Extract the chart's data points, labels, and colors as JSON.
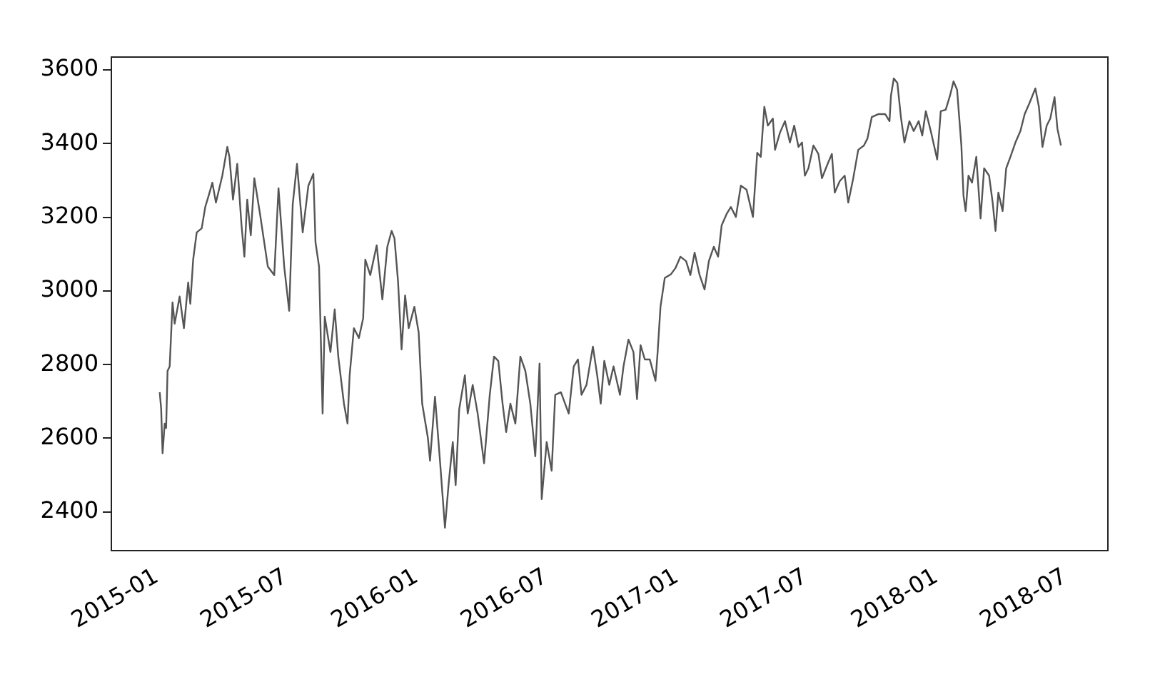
{
  "chart_data": {
    "type": "line",
    "xlim": [
      "2014-10-29",
      "2018-08-30"
    ],
    "xticks": [
      "2015-01",
      "2015-07",
      "2016-01",
      "2016-07",
      "2017-01",
      "2017-07",
      "2018-01",
      "2018-07"
    ],
    "ylim": [
      2295,
      3635
    ],
    "yticks": [
      2400,
      2600,
      2800,
      3000,
      3200,
      3400,
      3600
    ],
    "grid": false,
    "legend": false,
    "marker": "none",
    "series": [
      {
        "color": "#555555",
        "x": [
          "2015-01-05",
          "2015-01-07",
          "2015-01-09",
          "2015-01-12",
          "2015-01-14",
          "2015-01-16",
          "2015-01-19",
          "2015-01-23",
          "2015-01-26",
          "2015-02-02",
          "2015-02-08",
          "2015-02-14",
          "2015-02-17",
          "2015-02-21",
          "2015-02-26",
          "2015-03-05",
          "2015-03-10",
          "2015-03-15",
          "2015-03-20",
          "2015-03-25",
          "2015-04-03",
          "2015-04-10",
          "2015-04-13",
          "2015-04-18",
          "2015-04-24",
          "2015-04-30",
          "2015-05-04",
          "2015-05-08",
          "2015-05-13",
          "2015-05-18",
          "2015-05-26",
          "2015-06-06",
          "2015-06-15",
          "2015-06-21",
          "2015-06-29",
          "2015-07-06",
          "2015-07-11",
          "2015-07-17",
          "2015-07-25",
          "2015-08-02",
          "2015-08-09",
          "2015-08-12",
          "2015-08-17",
          "2015-08-22",
          "2015-08-25",
          "2015-09-02",
          "2015-09-08",
          "2015-09-13",
          "2015-09-21",
          "2015-09-26",
          "2015-09-29",
          "2015-10-05",
          "2015-10-12",
          "2015-10-18",
          "2015-10-21",
          "2015-10-28",
          "2015-11-06",
          "2015-11-14",
          "2015-11-21",
          "2015-11-27",
          "2015-12-01",
          "2015-12-06",
          "2015-12-11",
          "2015-12-16",
          "2015-12-21",
          "2015-12-29",
          "2016-01-04",
          "2016-01-09",
          "2016-01-17",
          "2016-01-20",
          "2016-01-27",
          "2016-02-03",
          "2016-02-10",
          "2016-02-15",
          "2016-02-21",
          "2016-02-25",
          "2016-03-01",
          "2016-03-09",
          "2016-03-13",
          "2016-03-20",
          "2016-03-27",
          "2016-04-05",
          "2016-04-13",
          "2016-04-19",
          "2016-04-25",
          "2016-05-01",
          "2016-05-06",
          "2016-05-12",
          "2016-05-19",
          "2016-05-26",
          "2016-06-02",
          "2016-06-09",
          "2016-06-16",
          "2016-06-22",
          "2016-06-25",
          "2016-07-02",
          "2016-07-09",
          "2016-07-14",
          "2016-07-22",
          "2016-08-02",
          "2016-08-09",
          "2016-08-15",
          "2016-08-20",
          "2016-08-27",
          "2016-09-05",
          "2016-09-11",
          "2016-09-16",
          "2016-09-21",
          "2016-09-28",
          "2016-10-04",
          "2016-10-13",
          "2016-10-18",
          "2016-10-25",
          "2016-11-01",
          "2016-11-06",
          "2016-11-11",
          "2016-11-17",
          "2016-11-24",
          "2016-12-02",
          "2016-12-05",
          "2016-12-09",
          "2016-12-15",
          "2016-12-24",
          "2016-12-30",
          "2017-01-06",
          "2017-01-14",
          "2017-01-20",
          "2017-01-26",
          "2017-02-02",
          "2017-02-09",
          "2017-02-15",
          "2017-02-22",
          "2017-02-28",
          "2017-03-05",
          "2017-03-12",
          "2017-03-18",
          "2017-03-25",
          "2017-04-01",
          "2017-04-09",
          "2017-04-18",
          "2017-04-24",
          "2017-04-29",
          "2017-05-04",
          "2017-05-09",
          "2017-05-16",
          "2017-05-19",
          "2017-05-26",
          "2017-06-02",
          "2017-06-09",
          "2017-06-15",
          "2017-06-21",
          "2017-06-26",
          "2017-06-30",
          "2017-07-05",
          "2017-07-12",
          "2017-07-19",
          "2017-07-24",
          "2017-08-01",
          "2017-08-07",
          "2017-08-11",
          "2017-08-18",
          "2017-08-25",
          "2017-08-30",
          "2017-09-06",
          "2017-09-13",
          "2017-09-21",
          "2017-09-26",
          "2017-10-02",
          "2017-10-11",
          "2017-10-21",
          "2017-10-27",
          "2017-10-29",
          "2017-11-02",
          "2017-11-07",
          "2017-11-12",
          "2017-11-17",
          "2017-11-24",
          "2017-11-30",
          "2017-12-07",
          "2017-12-12",
          "2017-12-17",
          "2017-12-24",
          "2018-01-02",
          "2018-01-07",
          "2018-01-14",
          "2018-01-20",
          "2018-01-25",
          "2018-01-30",
          "2018-02-05",
          "2018-02-08",
          "2018-02-11",
          "2018-02-15",
          "2018-02-20",
          "2018-02-26",
          "2018-03-04",
          "2018-03-09",
          "2018-03-16",
          "2018-03-21",
          "2018-03-25",
          "2018-03-29",
          "2018-04-04",
          "2018-04-09",
          "2018-04-15",
          "2018-04-22",
          "2018-04-29",
          "2018-05-05",
          "2018-05-12",
          "2018-05-20",
          "2018-05-25",
          "2018-05-30",
          "2018-06-05",
          "2018-06-10",
          "2018-06-16",
          "2018-06-20",
          "2018-06-25"
        ],
        "values": [
          2725,
          2680,
          2559,
          2640,
          2628,
          2783,
          2795,
          2969,
          2911,
          2985,
          2899,
          3023,
          2965,
          3085,
          3159,
          3170,
          3228,
          3260,
          3294,
          3240,
          3313,
          3391,
          3364,
          3248,
          3345,
          3178,
          3093,
          3248,
          3151,
          3306,
          3209,
          3066,
          3043,
          3279,
          3066,
          2946,
          3236,
          3345,
          3159,
          3286,
          3318,
          3132,
          3066,
          2667,
          2930,
          2834,
          2950,
          2822,
          2694,
          2640,
          2771,
          2899,
          2872,
          2926,
          3085,
          3043,
          3124,
          2977,
          3120,
          3163,
          3143,
          3027,
          2841,
          2988,
          2899,
          2957,
          2888,
          2694,
          2601,
          2539,
          2713,
          2539,
          2357,
          2473,
          2590,
          2473,
          2679,
          2771,
          2667,
          2745,
          2667,
          2532,
          2718,
          2822,
          2810,
          2694,
          2617,
          2694,
          2640,
          2822,
          2783,
          2694,
          2551,
          2803,
          2435,
          2590,
          2512,
          2718,
          2725,
          2667,
          2795,
          2814,
          2718,
          2745,
          2849,
          2771,
          2694,
          2810,
          2745,
          2795,
          2718,
          2795,
          2868,
          2834,
          2706,
          2853,
          2814,
          2814,
          2756,
          2834,
          2957,
          3035,
          3046,
          3062,
          3093,
          3081,
          3043,
          3104,
          3043,
          3004,
          3081,
          3120,
          3093,
          3178,
          3209,
          3228,
          3201,
          3286,
          3275,
          3201,
          3375,
          3364,
          3500,
          3449,
          3468,
          3383,
          3430,
          3461,
          3403,
          3449,
          3391,
          3403,
          3313,
          3333,
          3395,
          3372,
          3306,
          3345,
          3372,
          3267,
          3298,
          3313,
          3240,
          3306,
          3383,
          3395,
          3414,
          3472,
          3480,
          3480,
          3461,
          3530,
          3577,
          3565,
          3472,
          3403,
          3461,
          3434,
          3461,
          3422,
          3488,
          3434,
          3357,
          3488,
          3492,
          3530,
          3569,
          3546,
          3395,
          3259,
          3217,
          3313,
          3294,
          3364,
          3197,
          3333,
          3313,
          3240,
          3163,
          3267,
          3217,
          3333,
          3364,
          3403,
          3434,
          3480,
          3511,
          3550,
          3500,
          3391,
          3449,
          3468,
          3526,
          3441,
          3395
        ]
      }
    ]
  }
}
